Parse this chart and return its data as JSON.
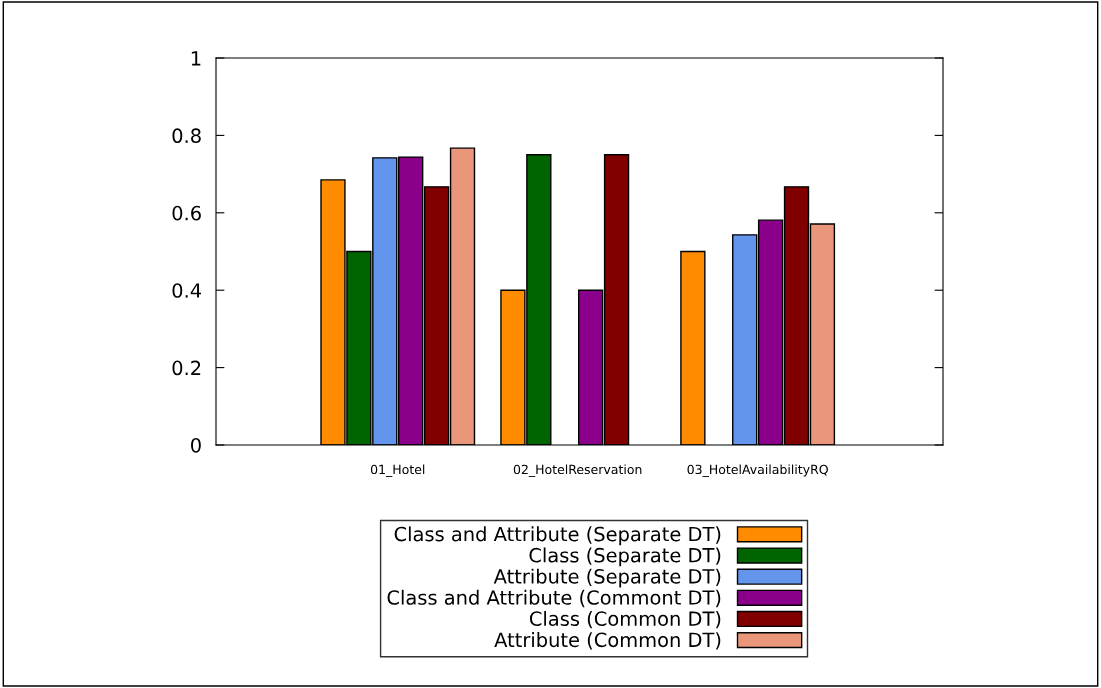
{
  "chart_data": {
    "type": "bar",
    "categories": [
      "01_Hotel",
      "02_HotelReservation",
      "03_HotelAvailabilityRQ"
    ],
    "series": [
      {
        "name": "Class and Attribute (Separate DT)",
        "color": "#ff8c00",
        "values": [
          0.685,
          0.4,
          0.5
        ]
      },
      {
        "name": "Class (Separate DT)",
        "color": "#006400",
        "values": [
          0.5,
          0.75,
          null
        ]
      },
      {
        "name": "Attribute (Separate DT)",
        "color": "#6495ed",
        "values": [
          0.742,
          null,
          0.543
        ]
      },
      {
        "name": "Class and Attribute (Commont DT)",
        "color": "#8b008b",
        "values": [
          0.744,
          0.4,
          0.581
        ]
      },
      {
        "name": "Class (Common DT)",
        "color": "#800000",
        "values": [
          0.667,
          0.75,
          0.667
        ]
      },
      {
        "name": "Attribute (Common DT)",
        "color": "#e9967a",
        "values": [
          0.767,
          null,
          0.571
        ]
      }
    ],
    "ylim": [
      0,
      1
    ],
    "yticks": [
      0,
      0.2,
      0.4,
      0.6,
      0.8,
      1
    ],
    "grid": false,
    "legend": "bottom"
  }
}
